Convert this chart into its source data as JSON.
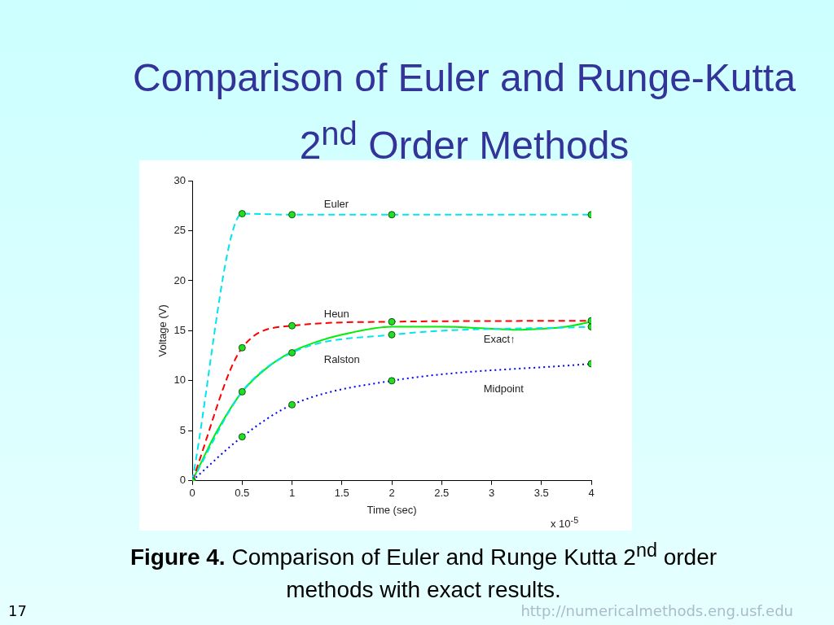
{
  "chart_data": {
    "type": "line",
    "title": "Comparison of Euler and Runge-Kutta 2$^{nd}$ Order Methods",
    "xlabel": "Time (sec)",
    "ylabel": "Voltage (V)",
    "xlim": [
      0,
      4
    ],
    "xticks": [
      0,
      0.5,
      1,
      1.5,
      2,
      2.5,
      3,
      3.5,
      4
    ],
    "ylim": [
      0,
      30
    ],
    "yticks": [
      0,
      5,
      10,
      15,
      20,
      25,
      30
    ],
    "grid": false,
    "legend": false,
    "series": [
      {
        "name": "Euler",
        "color": "#00e5ee",
        "line_style": "dashed",
        "marker": "circle",
        "x": [
          0,
          0.5,
          1,
          2,
          4
        ],
        "values": [
          0,
          26.7,
          26.6,
          26.6,
          26.6
        ]
      },
      {
        "name": "Heun",
        "color": "#ff0000",
        "line_style": "dashed",
        "marker": "circle",
        "x": [
          0,
          0.5,
          1,
          2,
          4
        ],
        "values": [
          0,
          13.3,
          15.5,
          15.9,
          16.0
        ]
      },
      {
        "name": "Ralston",
        "color": "#00e5ee",
        "line_style": "dashed",
        "marker": "circle",
        "x": [
          0,
          0.5,
          1,
          2,
          4
        ],
        "values": [
          0,
          8.9,
          12.8,
          14.6,
          15.4
        ]
      },
      {
        "name": "Exact↑",
        "color": "#00ee00",
        "line_style": "solid",
        "marker": "none",
        "x": [
          0,
          0.25,
          0.5,
          0.75,
          1,
          1.25,
          1.5,
          2,
          2.5,
          3,
          3.25,
          3.5,
          3.75,
          4
        ],
        "values": [
          0,
          5,
          8.9,
          11.3,
          12.9,
          13.9,
          14.6,
          15.4,
          15.4,
          15.2,
          15.1,
          15.2,
          15.4,
          15.9
        ]
      },
      {
        "name": "Midpoint",
        "color": "#0000ff",
        "line_style": "dotted",
        "marker": "circle",
        "x": [
          0,
          0.5,
          1,
          2,
          4
        ],
        "values": [
          0,
          4.4,
          7.6,
          10.0,
          11.7
        ]
      }
    ],
    "annotations": [
      "x 10$^{-5}$",
      "Figure 4.  Comparison of Euler and Runge Kutta 2$^{nd}$ order methods with exact results.",
      "17",
      "http://numericalmethods.eng.usf.edu"
    ]
  }
}
